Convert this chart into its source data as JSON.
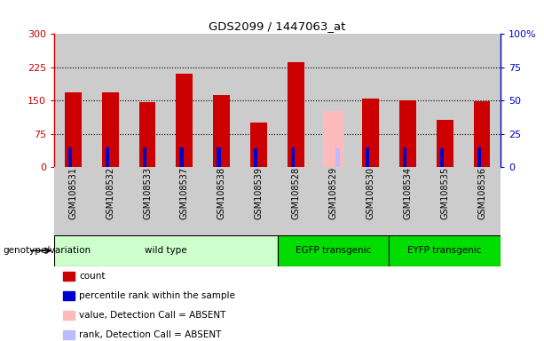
{
  "title": "GDS2099 / 1447063_at",
  "samples": [
    "GSM108531",
    "GSM108532",
    "GSM108533",
    "GSM108537",
    "GSM108538",
    "GSM108539",
    "GSM108528",
    "GSM108529",
    "GSM108530",
    "GSM108534",
    "GSM108535",
    "GSM108536"
  ],
  "count_values": [
    168,
    168,
    147,
    210,
    162,
    100,
    237,
    0,
    155,
    150,
    107,
    148
  ],
  "percentile_values": [
    44,
    44,
    44,
    45,
    44,
    43,
    45,
    0,
    44,
    44,
    43,
    44
  ],
  "absent_value_values": [
    0,
    0,
    0,
    0,
    0,
    0,
    0,
    127,
    0,
    0,
    0,
    0
  ],
  "absent_rank_values": [
    0,
    0,
    0,
    0,
    0,
    0,
    0,
    43,
    0,
    0,
    0,
    0
  ],
  "is_absent": [
    false,
    false,
    false,
    false,
    false,
    false,
    false,
    true,
    false,
    false,
    false,
    false
  ],
  "groups": [
    {
      "label": "wild type",
      "start": 0,
      "end": 6,
      "color": "#ccffcc"
    },
    {
      "label": "EGFP transgenic",
      "start": 6,
      "end": 9,
      "color": "#00dd00"
    },
    {
      "label": "EYFP transgenic",
      "start": 9,
      "end": 12,
      "color": "#00dd00"
    }
  ],
  "ylim_left": [
    0,
    300
  ],
  "ylim_right": [
    0,
    100
  ],
  "yticks_left": [
    0,
    75,
    150,
    225,
    300
  ],
  "yticks_right": [
    0,
    25,
    50,
    75,
    100
  ],
  "ytick_labels_left": [
    "0",
    "75",
    "150",
    "225",
    "300"
  ],
  "ytick_labels_right": [
    "0",
    "25",
    "50",
    "75",
    "100%"
  ],
  "color_count": "#cc0000",
  "color_percentile": "#0000cc",
  "color_absent_value": "#ffbbbb",
  "color_absent_rank": "#bbbbff",
  "bar_bg_color": "#cccccc",
  "plot_bg_color": "#ffffff",
  "grid_color": "#000000",
  "legend_items": [
    {
      "color": "#cc0000",
      "label": "count"
    },
    {
      "color": "#0000cc",
      "label": "percentile rank within the sample"
    },
    {
      "color": "#ffbbbb",
      "label": "value, Detection Call = ABSENT"
    },
    {
      "color": "#bbbbff",
      "label": "rank, Detection Call = ABSENT"
    }
  ]
}
